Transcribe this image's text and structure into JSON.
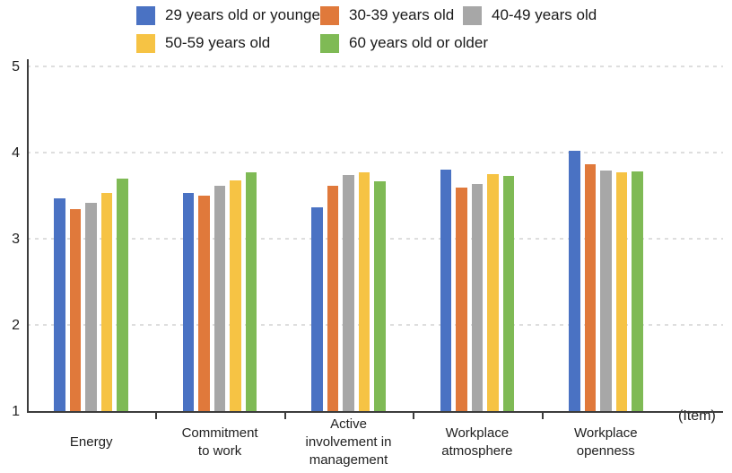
{
  "chart_data": {
    "type": "bar",
    "title": "",
    "categories": [
      [
        "Energy"
      ],
      [
        "Commitment",
        "to work"
      ],
      [
        "Active",
        "involvement in",
        "management"
      ],
      [
        "Workplace",
        "atmosphere"
      ],
      [
        "Workplace",
        "openness"
      ]
    ],
    "series": [
      {
        "name": "29 years old or younger",
        "color": "#4A72C3",
        "values": [
          3.47,
          3.53,
          3.36,
          3.8,
          4.02
        ]
      },
      {
        "name": "30-39 years old",
        "color": "#E0793B",
        "values": [
          3.34,
          3.5,
          3.61,
          3.59,
          3.86
        ]
      },
      {
        "name": "40-49 years old",
        "color": "#A7A7A7",
        "values": [
          3.42,
          3.61,
          3.74,
          3.64,
          3.79
        ]
      },
      {
        "name": "50-59 years old",
        "color": "#F6C344",
        "values": [
          3.53,
          3.68,
          3.77,
          3.75,
          3.77
        ]
      },
      {
        "name": "60 years old or older",
        "color": "#7FBA55",
        "values": [
          3.7,
          3.77,
          3.67,
          3.73,
          3.78
        ]
      }
    ],
    "ylim": [
      1,
      5
    ],
    "yticks": [
      1,
      2,
      3,
      4,
      5
    ],
    "xlabel_suffix": "(Item)",
    "legend_position": "top",
    "grid": "horizontal-dotted",
    "colors": {
      "axis": "#3c3c3c",
      "gridline": "#dedede",
      "text": "#212121"
    }
  }
}
